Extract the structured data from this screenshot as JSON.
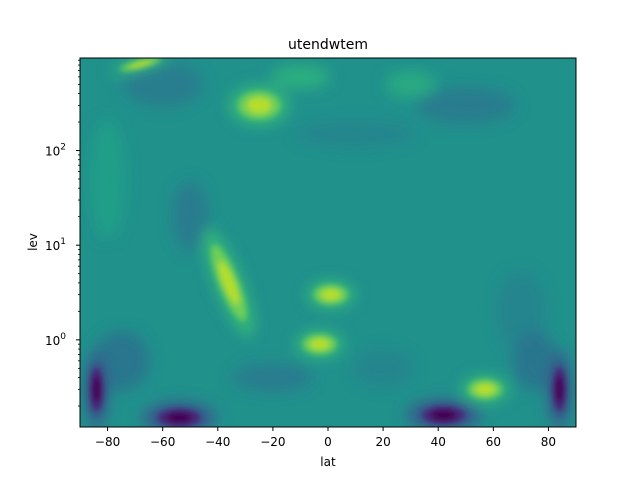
{
  "chart_data": {
    "type": "heatmap",
    "title": "utendwtem",
    "xlabel": "lat",
    "ylabel": "lev",
    "xlim": [
      -90,
      90
    ],
    "ylim": [
      0.12,
      950
    ],
    "y_scale": "log",
    "x_ticks": [
      -80,
      -60,
      -40,
      -20,
      0,
      20,
      40,
      60,
      80
    ],
    "x_tick_labels": [
      "−80",
      "−60",
      "−40",
      "−20",
      "0",
      "20",
      "40",
      "60",
      "80"
    ],
    "y_ticks": [
      {
        "value": 1,
        "base": "10",
        "exp": "0"
      },
      {
        "value": 10,
        "base": "10",
        "exp": "1"
      },
      {
        "value": 100,
        "base": "10",
        "exp": "2"
      }
    ],
    "colormap": "viridis",
    "background_level_color": "#21918c",
    "features": [
      {
        "kind": "high",
        "lat": -25,
        "lev": 300,
        "note": "yellow-green patch near top"
      },
      {
        "kind": "high",
        "lat": -68,
        "lev": 820,
        "note": "bright streak at top-left edge"
      },
      {
        "kind": "high",
        "lat": -36,
        "lev": 4,
        "note": "elongated green-yellow band"
      },
      {
        "kind": "high",
        "lat": 1,
        "lev": 3,
        "note": "green blob"
      },
      {
        "kind": "high",
        "lat": -3,
        "lev": 0.9,
        "note": "green blob"
      },
      {
        "kind": "high",
        "lat": 57,
        "lev": 0.3,
        "note": "green blob"
      },
      {
        "kind": "low",
        "lat": -54,
        "lev": 0.15,
        "note": "dark purple minimum"
      },
      {
        "kind": "low",
        "lat": 42,
        "lev": 0.16,
        "note": "dark purple minimum"
      },
      {
        "kind": "low",
        "lat": -84,
        "lev": 0.3,
        "note": "purple minimum"
      },
      {
        "kind": "low",
        "lat": 84,
        "lev": 0.3,
        "note": "purple minimum"
      }
    ]
  }
}
